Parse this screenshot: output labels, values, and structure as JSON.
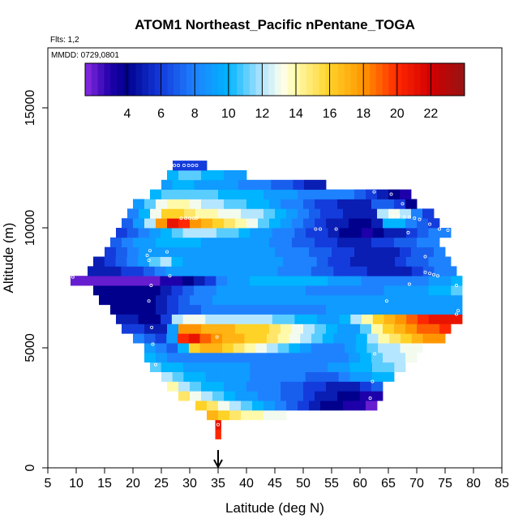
{
  "chart_data": {
    "type": "heatmap",
    "title": "ATOM1 Northeast_Pacific nPentane_TOGA",
    "flights_label": "Flts: 1,2",
    "dates_label": "MMDD: 0729,0801",
    "xlabel": "Latitude (deg N)",
    "ylabel": "Altitude (m)",
    "xlim": [
      5,
      85
    ],
    "ylim": [
      0,
      17500
    ],
    "x_ticks": [
      "5",
      "10",
      "15",
      "20",
      "25",
      "30",
      "35",
      "40",
      "45",
      "50",
      "55",
      "60",
      "65",
      "70",
      "75",
      "80",
      "85"
    ],
    "y_ticks": [
      "0",
      "5000",
      "10000",
      "15000"
    ],
    "colorbar": {
      "range": [
        1.5,
        24
      ],
      "ticks": [
        "4",
        "6",
        "8",
        "10",
        "12",
        "14",
        "16",
        "18",
        "20",
        "22"
      ],
      "tick_values": [
        4,
        6,
        8,
        10,
        12,
        14,
        16,
        18,
        20,
        22
      ]
    },
    "marker_latitude": 35,
    "rows": [
      {
        "alt": 1400,
        "lat0": 34.5,
        "lat1": 35.5,
        "values": [
          20
        ]
      },
      {
        "alt": 1800,
        "lat0": 34.5,
        "lat1": 35.5,
        "values": [
          21
        ]
      },
      {
        "alt": 2200,
        "lat0": 33,
        "lat1": 47,
        "values": [
          17,
          16,
          15,
          14,
          14,
          13,
          13
        ]
      },
      {
        "alt": 2600,
        "lat0": 31,
        "lat1": 63,
        "values": [
          16,
          15,
          13,
          12,
          11,
          10,
          9,
          8,
          7,
          6,
          5,
          4,
          4,
          3,
          3,
          2
        ]
      },
      {
        "alt": 3000,
        "lat0": 28,
        "lat1": 64,
        "values": [
          15,
          13,
          12,
          11,
          10,
          9,
          9,
          8,
          8,
          7,
          7,
          6,
          5,
          5,
          4,
          4,
          3,
          3
        ]
      },
      {
        "alt": 3400,
        "lat0": 26,
        "lat1": 64,
        "values": [
          14,
          12,
          11,
          10,
          10,
          9,
          9,
          8,
          8,
          8,
          7,
          7,
          6,
          6,
          5,
          5,
          5,
          6,
          7
        ]
      },
      {
        "alt": 3800,
        "lat0": 25,
        "lat1": 66,
        "values": [
          12,
          11,
          10,
          10,
          9,
          9,
          9,
          9,
          8,
          8,
          8,
          8,
          8,
          7,
          7,
          7,
          8,
          9,
          9,
          10,
          10
        ]
      },
      {
        "alt": 4200,
        "lat0": 23,
        "lat1": 68,
        "values": [
          11,
          10,
          10,
          9,
          9,
          9,
          9,
          9,
          9,
          8,
          8,
          8,
          8,
          8,
          8,
          8,
          9,
          9,
          10,
          10,
          11,
          11,
          12
        ]
      },
      {
        "alt": 4600,
        "lat0": 22,
        "lat1": 70,
        "values": [
          10,
          9,
          8,
          8,
          8,
          8,
          8,
          8,
          8,
          8,
          8,
          8,
          8,
          8,
          8,
          8,
          8,
          8,
          9,
          10,
          11,
          12,
          12,
          13
        ]
      },
      {
        "alt": 5000,
        "lat0": 22,
        "lat1": 71,
        "values": [
          9,
          8,
          7,
          10,
          16,
          17,
          17,
          16,
          15,
          14,
          13,
          12,
          11,
          10,
          9,
          8,
          8,
          8,
          9,
          10,
          11,
          12,
          12,
          13,
          13
        ]
      },
      {
        "alt": 5400,
        "lat0": 20,
        "lat1": 75,
        "values": [
          8,
          7,
          6,
          9,
          20,
          21,
          19,
          18,
          17,
          17,
          16,
          16,
          15,
          14,
          13,
          12,
          11,
          10,
          9,
          9,
          10,
          12,
          14,
          15,
          16,
          17,
          18,
          18
        ]
      },
      {
        "alt": 5800,
        "lat0": 18,
        "lat1": 76,
        "values": [
          6,
          6,
          5,
          5,
          9,
          18,
          18,
          17,
          17,
          17,
          16,
          16,
          16,
          15,
          14,
          13,
          12,
          11,
          10,
          9,
          9,
          11,
          14,
          16,
          17,
          18,
          19,
          19,
          20
        ]
      },
      {
        "alt": 6200,
        "lat0": 17,
        "lat1": 78,
        "values": [
          5,
          5,
          4,
          4,
          6,
          12,
          13,
          13,
          12,
          12,
          12,
          12,
          12,
          12,
          11,
          11,
          10,
          10,
          9,
          9,
          10,
          12,
          14,
          16,
          17,
          18,
          19,
          20,
          21,
          21,
          21
        ]
      },
      {
        "alt": 6600,
        "lat0": 16,
        "lat1": 78,
        "values": [
          4,
          4,
          4,
          4,
          5,
          6,
          7,
          7,
          8,
          8,
          8,
          8,
          8,
          8,
          8,
          8,
          8,
          8,
          8,
          9,
          9,
          9,
          9,
          9,
          9,
          9,
          9,
          9,
          9,
          9,
          9
        ]
      },
      {
        "alt": 7000,
        "lat0": 14,
        "lat1": 78,
        "values": [
          4,
          4,
          4,
          4,
          4,
          5,
          6,
          7,
          8,
          8,
          9,
          9,
          9,
          9,
          9,
          9,
          9,
          9,
          9,
          9,
          9,
          9,
          9,
          9,
          9,
          9,
          9,
          9,
          9,
          9,
          9,
          9
        ]
      },
      {
        "alt": 7400,
        "lat0": 13,
        "lat1": 78,
        "values": [
          4,
          4,
          4,
          4,
          4,
          4,
          5,
          6,
          7,
          8,
          8,
          9,
          9,
          9,
          9,
          9,
          9,
          9,
          9,
          8,
          8,
          8,
          8,
          8,
          8,
          8,
          9,
          9,
          9,
          9,
          10,
          10,
          11
        ]
      },
      {
        "alt": 7800,
        "lat0": 9,
        "lat1": 78,
        "values": [
          2,
          2,
          2,
          2,
          2,
          2,
          2,
          2,
          3,
          3,
          4,
          5,
          6,
          8,
          9,
          9,
          10,
          10,
          10,
          10,
          10,
          10,
          10,
          9,
          9,
          9,
          8,
          8,
          8,
          8,
          8,
          8,
          9,
          9,
          10
        ]
      },
      {
        "alt": 8200,
        "lat0": 12,
        "lat1": 77,
        "values": [
          5,
          5,
          5,
          6,
          6,
          7,
          8,
          9,
          9,
          9,
          9,
          9,
          9,
          9,
          9,
          9,
          9,
          8,
          8,
          8,
          7,
          7,
          6,
          6,
          6,
          5,
          5,
          5,
          5,
          6,
          7,
          8,
          8
        ]
      },
      {
        "alt": 8600,
        "lat0": 13,
        "lat1": 76,
        "values": [
          5,
          6,
          7,
          8,
          9,
          11,
          12,
          10,
          9,
          9,
          9,
          9,
          9,
          9,
          9,
          9,
          9,
          8,
          8,
          8,
          7,
          6,
          6,
          5,
          5,
          5,
          5,
          6,
          7,
          7,
          8,
          8
        ]
      },
      {
        "alt": 9000,
        "lat0": 15,
        "lat1": 75,
        "values": [
          6,
          7,
          8,
          9,
          9,
          9,
          9,
          9,
          9,
          9,
          9,
          9,
          9,
          9,
          9,
          8,
          8,
          8,
          7,
          7,
          6,
          6,
          5,
          5,
          5,
          5,
          6,
          7,
          7,
          8
        ]
      },
      {
        "alt": 9400,
        "lat0": 16,
        "lat1": 74,
        "values": [
          7,
          8,
          9,
          9,
          10,
          10,
          10,
          10,
          9,
          9,
          9,
          9,
          9,
          9,
          8,
          8,
          7,
          7,
          6,
          6,
          5,
          5,
          5,
          6,
          6,
          7,
          7,
          8,
          8
        ]
      },
      {
        "alt": 9800,
        "lat0": 17,
        "lat1": 76,
        "values": [
          6,
          7,
          8,
          9,
          10,
          11,
          12,
          12,
          12,
          11,
          11,
          10,
          9,
          9,
          8,
          8,
          7,
          6,
          6,
          5,
          4,
          4,
          3,
          4,
          5,
          5,
          6,
          7,
          8,
          8
        ]
      },
      {
        "alt": 10200,
        "lat0": 18,
        "lat1": 74,
        "values": [
          7,
          9,
          12,
          18,
          21,
          20,
          18,
          17,
          16,
          15,
          14,
          13,
          11,
          10,
          9,
          8,
          7,
          6,
          5,
          5,
          4,
          4,
          5,
          10,
          10,
          8,
          7,
          6
        ]
      },
      {
        "alt": 10600,
        "lat0": 19,
        "lat1": 73,
        "values": [
          8,
          10,
          13,
          16,
          16,
          15,
          14,
          14,
          13,
          13,
          12,
          12,
          11,
          10,
          9,
          8,
          7,
          6,
          6,
          5,
          5,
          5,
          12,
          13,
          12,
          8,
          6
        ]
      },
      {
        "alt": 11000,
        "lat0": 20,
        "lat1": 70,
        "values": [
          9,
          11,
          13,
          14,
          14,
          13,
          12,
          12,
          11,
          11,
          10,
          10,
          9,
          8,
          8,
          7,
          6,
          6,
          5,
          5,
          5,
          7,
          7,
          6,
          4
        ]
      },
      {
        "alt": 11400,
        "lat0": 23,
        "lat1": 69,
        "values": [
          10,
          11,
          11,
          11,
          11,
          11,
          10,
          10,
          10,
          10,
          9,
          9,
          9,
          8,
          8,
          8,
          8,
          8,
          7,
          6,
          5,
          4,
          3
        ]
      },
      {
        "alt": 11800,
        "lat0": 25,
        "lat1": 54,
        "values": [
          9,
          10,
          10,
          9,
          9,
          9,
          9,
          8,
          8,
          8,
          7,
          7,
          6,
          5,
          5
        ]
      },
      {
        "alt": 12200,
        "lat0": 26,
        "lat1": 40,
        "values": [
          10,
          11,
          11,
          10,
          10,
          9,
          9
        ]
      },
      {
        "alt": 12600,
        "lat0": 27,
        "lat1": 33,
        "values": [
          6,
          6,
          6,
          6,
          6,
          6
        ]
      }
    ],
    "sample_points": [
      {
        "lat": 35,
        "alt": 1800
      },
      {
        "lat": 34.8,
        "alt": 5450
      },
      {
        "lat": 24,
        "alt": 4300
      },
      {
        "lat": 23.5,
        "alt": 5150
      },
      {
        "lat": 23.3,
        "alt": 5850
      },
      {
        "lat": 22.8,
        "alt": 6950
      },
      {
        "lat": 23.2,
        "alt": 7600
      },
      {
        "lat": 22.8,
        "alt": 8650
      },
      {
        "lat": 22.5,
        "alt": 8850
      },
      {
        "lat": 23,
        "alt": 9050
      },
      {
        "lat": 26.5,
        "alt": 8000
      },
      {
        "lat": 26,
        "alt": 9000
      },
      {
        "lat": 27.3,
        "alt": 12600
      },
      {
        "lat": 28,
        "alt": 12600
      },
      {
        "lat": 29,
        "alt": 12600
      },
      {
        "lat": 29.8,
        "alt": 12600
      },
      {
        "lat": 30.5,
        "alt": 12600
      },
      {
        "lat": 31.2,
        "alt": 12600
      },
      {
        "lat": 28.5,
        "alt": 10400
      },
      {
        "lat": 29.3,
        "alt": 10400
      },
      {
        "lat": 30,
        "alt": 10400
      },
      {
        "lat": 30.7,
        "alt": 10400
      },
      {
        "lat": 31.2,
        "alt": 10400
      },
      {
        "lat": 52.2,
        "alt": 9950
      },
      {
        "lat": 53,
        "alt": 9950
      },
      {
        "lat": 55.8,
        "alt": 9950
      },
      {
        "lat": 62.5,
        "alt": 11500
      },
      {
        "lat": 65.5,
        "alt": 11400
      },
      {
        "lat": 67.5,
        "alt": 11000
      },
      {
        "lat": 65.8,
        "alt": 10500
      },
      {
        "lat": 66.8,
        "alt": 10500
      },
      {
        "lat": 67.8,
        "alt": 10450
      },
      {
        "lat": 68.7,
        "alt": 10450
      },
      {
        "lat": 69.6,
        "alt": 10400
      },
      {
        "lat": 70.5,
        "alt": 10350
      },
      {
        "lat": 68.5,
        "alt": 9800
      },
      {
        "lat": 72.3,
        "alt": 10150
      },
      {
        "lat": 74,
        "alt": 9950
      },
      {
        "lat": 75.5,
        "alt": 9900
      },
      {
        "lat": 71.5,
        "alt": 8800
      },
      {
        "lat": 71.5,
        "alt": 8150
      },
      {
        "lat": 72.3,
        "alt": 8100
      },
      {
        "lat": 73,
        "alt": 8050
      },
      {
        "lat": 73.7,
        "alt": 8000
      },
      {
        "lat": 68.7,
        "alt": 7650
      },
      {
        "lat": 77,
        "alt": 7600
      },
      {
        "lat": 64.7,
        "alt": 6950
      },
      {
        "lat": 77,
        "alt": 6400
      },
      {
        "lat": 77.3,
        "alt": 6550
      },
      {
        "lat": 62.6,
        "alt": 4750
      },
      {
        "lat": 62.2,
        "alt": 3600
      },
      {
        "lat": 61.8,
        "alt": 2900
      },
      {
        "lat": 9.4,
        "alt": 7950
      }
    ]
  }
}
